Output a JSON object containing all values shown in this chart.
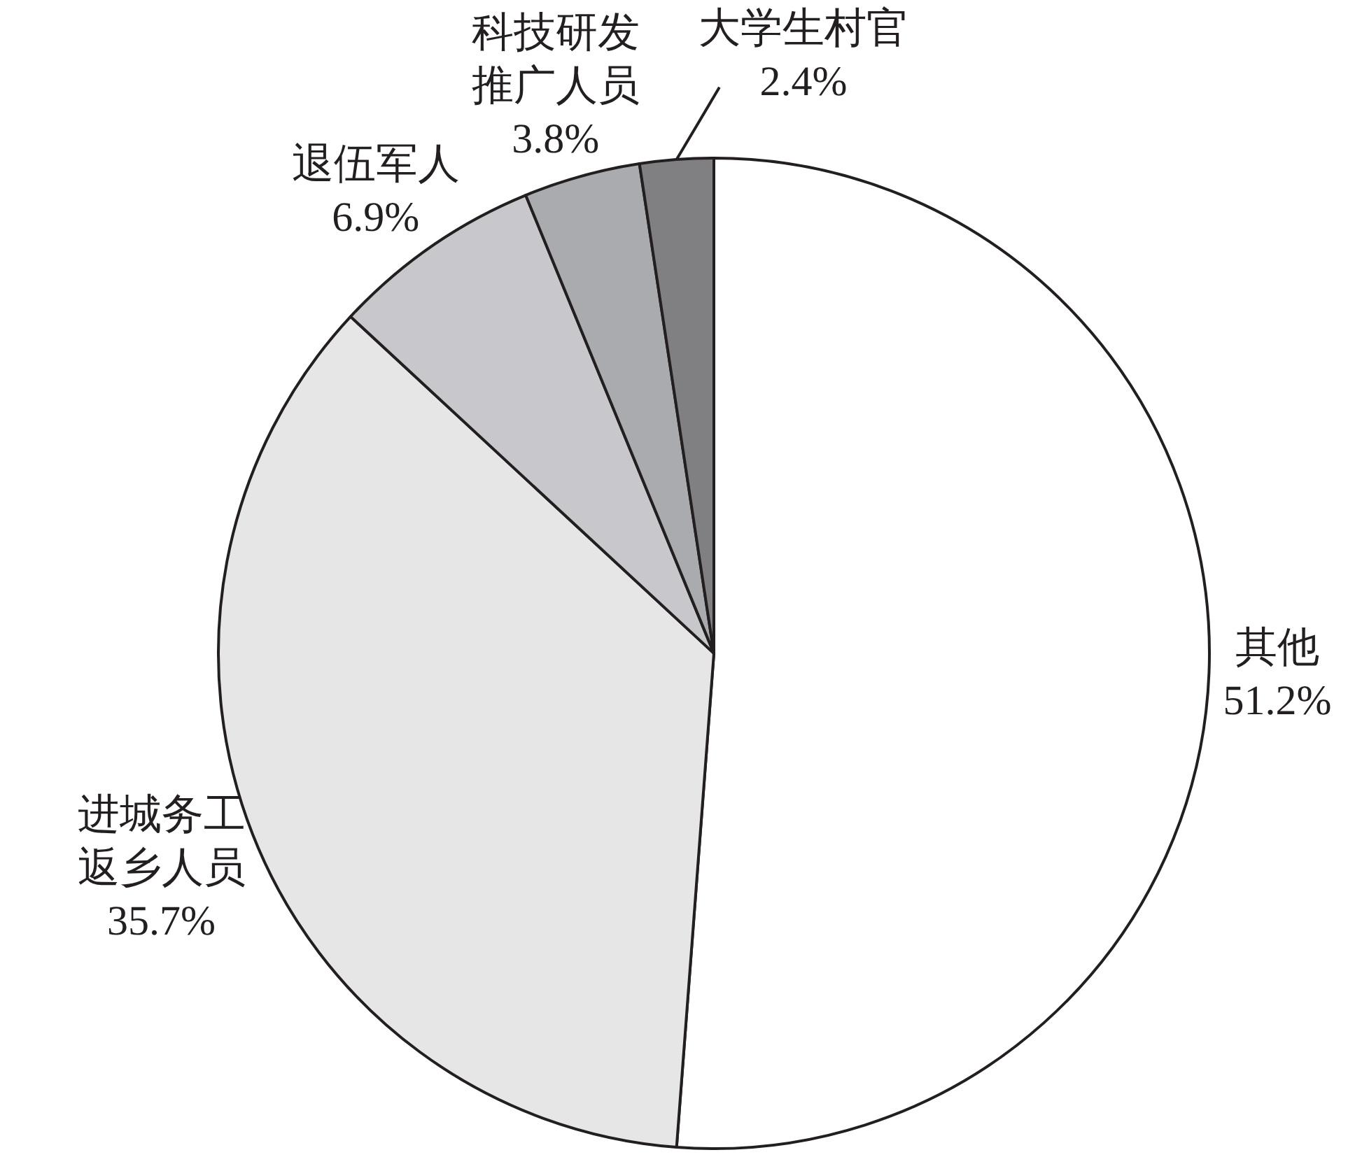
{
  "chart_data": {
    "type": "pie",
    "categories": [
      "其他",
      "进城务工返乡人员",
      "退伍军人",
      "科技研发推广人员",
      "大学生村官"
    ],
    "values": [
      51.2,
      35.7,
      6.9,
      3.8,
      2.4
    ],
    "value_labels": [
      "51.2%",
      "35.7%",
      "6.9%",
      "3.8%",
      "2.4%"
    ],
    "colors": [
      "#ffffff",
      "#e6e6e6",
      "#c8c8cc",
      "#a9abae",
      "#808083"
    ]
  }
}
